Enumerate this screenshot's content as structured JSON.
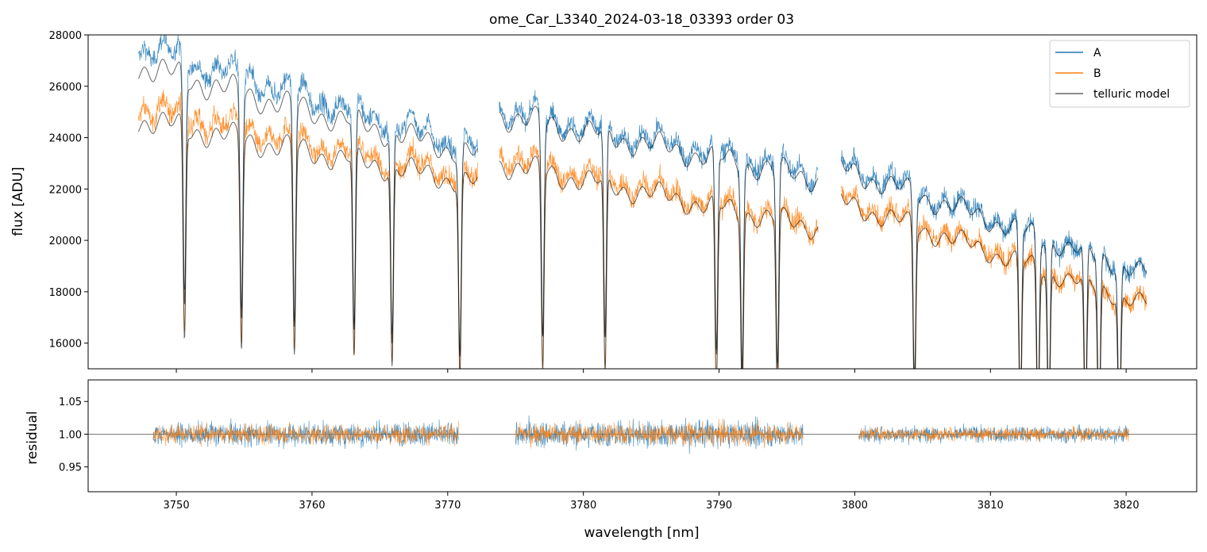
{
  "chart_data": {
    "type": "line",
    "title": "ome_Car_L3340_2024-03-18_03393  order 03",
    "colors": {
      "A": "#1f77b4",
      "B": "#ff7f0e",
      "telluric": "#000000"
    },
    "panels": [
      {
        "id": "flux",
        "ylabel": "flux [ADU]",
        "xlim": [
          3743.5,
          3825.2
        ],
        "ylim": [
          15000,
          28000
        ],
        "yticks": [
          16000,
          18000,
          20000,
          22000,
          24000,
          26000,
          28000
        ],
        "legend": {
          "placement": "top-right",
          "entries": [
            "A",
            "B",
            "telluric model"
          ]
        },
        "segments": [
          {
            "x_range": [
              3747.2,
              3772.2
            ],
            "A_level": [
              27600,
              23600
            ],
            "B_level": [
              25200,
              22400
            ],
            "A_model_level": [
              26800,
              23300
            ],
            "B_model_level": [
              24700,
              22200
            ]
          },
          {
            "x_range": [
              3773.8,
              3797.3
            ],
            "A_level": [
              25100,
              22600
            ],
            "B_level": [
              23300,
              20600
            ],
            "A_model_level": [
              24900,
              22400
            ],
            "B_model_level": [
              23000,
              20500
            ]
          },
          {
            "x_range": [
              3799.0,
              3821.5
            ],
            "A_level": [
              23000,
              18700
            ],
            "B_level": [
              21700,
              17500
            ],
            "A_model_level": [
              22800,
              18700
            ],
            "B_model_level": [
              21500,
              17500
            ]
          }
        ],
        "telluric_lines_nm": [
          3750.6,
          3754.8,
          3758.7,
          3763.1,
          3765.9,
          3770.9,
          3777.0,
          3781.6,
          3789.8,
          3791.7,
          3794.3,
          3804.4,
          3812.2,
          3813.5,
          3814.3,
          3817.0,
          3818.0,
          3819.5
        ]
      },
      {
        "id": "residual",
        "ylabel": "residual",
        "xlabel": "wavelength [nm]",
        "xlim": [
          3743.5,
          3825.2
        ],
        "ylim": [
          0.912,
          1.083
        ],
        "yticks": [
          0.95,
          1.0,
          1.05
        ],
        "xticks": [
          3750,
          3760,
          3770,
          3780,
          3790,
          3800,
          3810,
          3820
        ],
        "reference_line": 1.0,
        "segments": [
          {
            "x_range": [
              3748.3,
              3770.8
            ],
            "scatter": 0.018
          },
          {
            "x_range": [
              3775.0,
              3796.2
            ],
            "scatter": 0.02
          },
          {
            "x_range": [
              3800.3,
              3820.2
            ],
            "scatter": 0.012
          }
        ]
      }
    ],
    "series": [
      {
        "name": "A"
      },
      {
        "name": "B"
      },
      {
        "name": "telluric model"
      }
    ]
  }
}
